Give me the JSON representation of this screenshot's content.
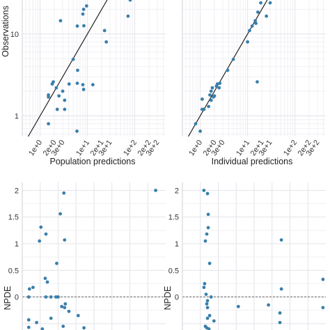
{
  "colors": {
    "point": "#3a7fab",
    "identity_line": "#111111",
    "grid_major": "#e3e3ea",
    "grid_minor": "#f0f0f5",
    "zero_line": "#666666",
    "axis": "#555555"
  },
  "chart_data": [
    {
      "type": "scatter",
      "xlabel": "Population predictions",
      "ylabel": "Observations",
      "x_scale": "log",
      "y_scale": "log",
      "xlim": [
        0.42,
        450
      ],
      "ylim": [
        0.56,
        26
      ],
      "x_tick_labels": [
        "1e+0",
        "2e+0",
        "3e+0",
        "1e+1",
        "2e+1",
        "3e+1",
        "1e+2",
        "2e+2",
        "3e+2"
      ],
      "x_tick_values": [
        1,
        2,
        3,
        10,
        20,
        30,
        100,
        200,
        300
      ],
      "y_tick_labels": [
        "1",
        "10"
      ],
      "y_tick_values": [
        1,
        10
      ],
      "identity_line": true,
      "grid": true,
      "x": [
        80,
        2.7,
        6.1,
        8.3,
        8.0,
        8.4,
        9.6,
        72,
        23,
        25,
        5.0,
        4.1,
        1.5,
        1.5,
        6.2,
        8.3,
        1.9,
        2.5,
        6.1,
        1.8,
        2.2,
        3.0,
        8.0,
        13,
        3.3,
        3.3,
        6.0,
        1.5,
        2.3
      ],
      "y": [
        26,
        14.5,
        12.5,
        20,
        17.5,
        12.6,
        22,
        16.5,
        11,
        8.0,
        4.9,
        2.45,
        1.8,
        1.7,
        3.6,
        2.1,
        2.6,
        1.75,
        2.5,
        2.45,
        2.2,
        2.0,
        2.4,
        2.4,
        1.55,
        1.2,
        0.65,
        0.8,
        1.2
      ]
    },
    {
      "type": "scatter",
      "xlabel": "Individual predictions",
      "ylabel": "",
      "x_scale": "log",
      "y_scale": "log",
      "xlim": [
        0.42,
        450
      ],
      "ylim": [
        0.56,
        26
      ],
      "x_tick_labels": [
        "1e+0",
        "2e+0",
        "3e+0",
        "1e+1",
        "2e+1",
        "3e+1",
        "1e+2",
        "2e+2",
        "3e+2"
      ],
      "x_tick_values": [
        1,
        2,
        3,
        10,
        20,
        30,
        100,
        200,
        300
      ],
      "y_tick_labels": [],
      "y_tick_values": [],
      "identity_line": true,
      "grid": true,
      "x": [
        19,
        16.5,
        14.5,
        15,
        12.5,
        11,
        10,
        25,
        30,
        5.0,
        3.8,
        2.3,
        1.8,
        1.7,
        1.6,
        2.6,
        2.2,
        2.5,
        1.9,
        2.0,
        1.1,
        1.1,
        1.2,
        0.8,
        16,
        1.7,
        1.0,
        1.5
      ],
      "y": [
        24,
        18.5,
        14.5,
        13.5,
        12.5,
        11,
        8.0,
        16.5,
        24,
        4.9,
        3.6,
        2.45,
        2.2,
        2.0,
        1.8,
        2.5,
        2.3,
        2.2,
        1.7,
        1.75,
        1.6,
        1.2,
        1.2,
        0.8,
        2.6,
        1.55,
        0.65,
        1.3
      ]
    },
    {
      "type": "scatter",
      "xlabel": "",
      "ylabel": "NPDE",
      "y_scale": "linear",
      "ylim": [
        -0.62,
        2.15
      ],
      "y_tick_labels": [
        "0",
        "0.5",
        "1",
        "1.5",
        "2"
      ],
      "y_tick_values": [
        0,
        0.5,
        1,
        1.5,
        2
      ],
      "zero_line": true,
      "grid": true,
      "x_rel": [
        0.93,
        0.29,
        0.265,
        0.295,
        0.13,
        0.165,
        0.12,
        0.075,
        0.05,
        0.045,
        0.16,
        0.175,
        0.165,
        0.2,
        0.235,
        0.25,
        0.24,
        0.3,
        0.275,
        0.295,
        0.045,
        0.1,
        0.2,
        0.285,
        0.14,
        0.045,
        0.325,
        0.39,
        0.43
      ],
      "y": [
        2.0,
        1.95,
        1.56,
        1.07,
        1.31,
        1.18,
        1.05,
        0.18,
        0.15,
        0.0,
        0.35,
        0.28,
        0.0,
        0.0,
        0.0,
        0.0,
        0.63,
        -0.13,
        -0.18,
        -0.2,
        -0.43,
        -0.48,
        -0.4,
        -0.55,
        -0.6,
        -0.57,
        -0.27,
        -0.35,
        -0.58
      ]
    },
    {
      "type": "scatter",
      "xlabel": "",
      "ylabel": "NPDE",
      "y_scale": "linear",
      "ylim": [
        -0.62,
        2.15
      ],
      "y_tick_labels": [
        "0",
        "0.5",
        "1",
        "1.5",
        "2"
      ],
      "y_tick_values": [
        0,
        0.5,
        1,
        1.5,
        2
      ],
      "zero_line": true,
      "grid": true,
      "x_rel": [
        0.15,
        0.175,
        0.18,
        0.18,
        0.17,
        0.16,
        0.19,
        0.155,
        0.15,
        0.165,
        0.2,
        0.175,
        0.17,
        0.175,
        0.69,
        0.69,
        0.68,
        0.98,
        0.98,
        0.19,
        0.175,
        0.22,
        0.39,
        0.6,
        0.68,
        0.16,
        0.17,
        0.185
      ],
      "y": [
        2.0,
        1.94,
        1.55,
        1.3,
        1.18,
        1.05,
        0.63,
        0.25,
        0.18,
        0.05,
        0.0,
        -0.07,
        -0.13,
        -0.2,
        1.07,
        0.15,
        -0.3,
        0.33,
        -0.2,
        -0.35,
        -0.4,
        -0.45,
        -0.18,
        -0.15,
        -0.48,
        -0.55,
        -0.58,
        -0.6
      ]
    }
  ]
}
